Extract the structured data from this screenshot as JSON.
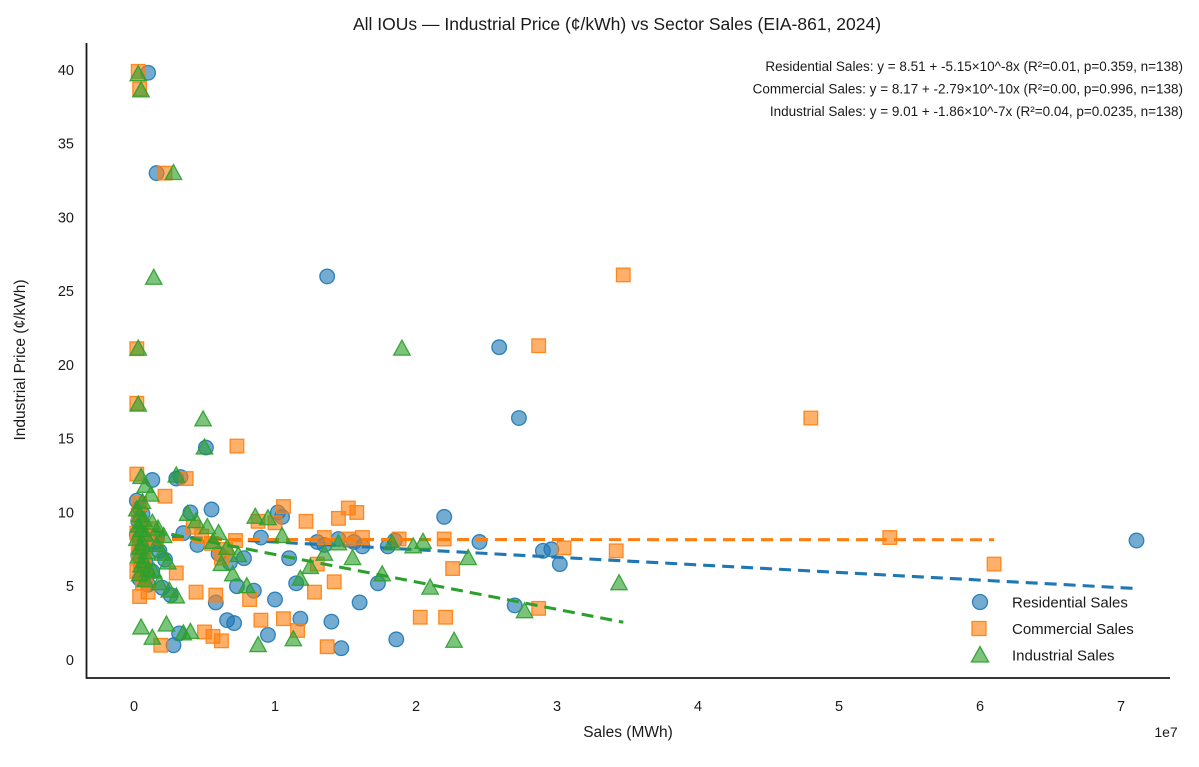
{
  "chart_data": {
    "type": "scatter",
    "title": "All IOUs — Industrial Price (¢/kWh) vs Sector Sales (EIA-861, 2024)",
    "xlabel": "Sales (MWh)",
    "ylabel": "Industrial Price (¢/kWh)",
    "x_offset_label": "1e7",
    "xlim": [
      -0.34,
      7.35
    ],
    "ylim": [
      -1.2,
      41.8
    ],
    "x_ticks": [
      0,
      1,
      2,
      3,
      4,
      5,
      6,
      7
    ],
    "y_ticks": [
      0,
      5,
      10,
      15,
      20,
      25,
      30,
      35,
      40
    ],
    "grid": false,
    "legend_position": "lower right",
    "annotations": [
      "Residential Sales: y = 8.51 + -5.15×10^-8x  (R²=0.01, p=0.359, n=138)",
      "Commercial Sales: y = 8.17 + -2.79×10^-10x  (R²=0.00, p=0.996, n=138)",
      "Industrial Sales: y = 9.01 + -1.86×10^-7x  (R²=0.04, p=0.0235, n=138)"
    ],
    "x_unit_scale": "x values in units of 1e7 MWh",
    "series": [
      {
        "name": "Residential Sales",
        "marker": "circle",
        "color": "#1f77b4",
        "n": 138,
        "trend": {
          "x1": 0,
          "y1": 8.51,
          "x2": 7.1,
          "y2": 4.85
        },
        "points": [
          [
            0.1,
            39.8
          ],
          [
            0.16,
            33.0
          ],
          [
            1.37,
            26.0
          ],
          [
            2.59,
            21.2
          ],
          [
            2.73,
            16.4
          ],
          [
            0.51,
            14.4
          ],
          [
            0.33,
            12.4
          ],
          [
            0.13,
            12.2
          ],
          [
            0.3,
            12.3
          ],
          [
            0.02,
            10.8
          ],
          [
            0.04,
            10.3
          ],
          [
            0.06,
            9.9
          ],
          [
            0.03,
            9.4
          ],
          [
            0.05,
            8.9
          ],
          [
            0.02,
            8.5
          ],
          [
            0.07,
            8.2
          ],
          [
            0.04,
            7.9
          ],
          [
            0.06,
            7.5
          ],
          [
            0.03,
            7.1
          ],
          [
            0.08,
            6.7
          ],
          [
            0.05,
            6.3
          ],
          [
            0.09,
            5.9
          ],
          [
            0.04,
            5.5
          ],
          [
            0.1,
            5.1
          ],
          [
            0.15,
            8.0
          ],
          [
            0.18,
            7.4
          ],
          [
            0.22,
            6.8
          ],
          [
            0.13,
            6.0
          ],
          [
            0.2,
            4.9
          ],
          [
            0.26,
            4.4
          ],
          [
            0.4,
            10.0
          ],
          [
            0.55,
            10.2
          ],
          [
            0.35,
            8.6
          ],
          [
            0.45,
            7.8
          ],
          [
            0.6,
            7.2
          ],
          [
            0.68,
            6.6
          ],
          [
            0.78,
            6.9
          ],
          [
            0.73,
            5.0
          ],
          [
            0.85,
            4.7
          ],
          [
            0.58,
            3.9
          ],
          [
            0.95,
            1.7
          ],
          [
            0.71,
            2.5
          ],
          [
            0.28,
            1.0
          ],
          [
            0.32,
            1.8
          ],
          [
            1.02,
            10.0
          ],
          [
            1.05,
            9.7
          ],
          [
            1.1,
            6.9
          ],
          [
            0.9,
            8.3
          ],
          [
            1.15,
            5.2
          ],
          [
            1.0,
            4.1
          ],
          [
            1.18,
            2.8
          ],
          [
            0.66,
            2.7
          ],
          [
            1.3,
            8.0
          ],
          [
            1.35,
            7.8
          ],
          [
            1.45,
            8.2
          ],
          [
            1.56,
            8.0
          ],
          [
            1.62,
            7.7
          ],
          [
            1.4,
            2.6
          ],
          [
            1.47,
            0.8
          ],
          [
            1.86,
            1.4
          ],
          [
            1.8,
            7.7
          ],
          [
            1.85,
            8.1
          ],
          [
            1.73,
            5.2
          ],
          [
            1.6,
            3.9
          ],
          [
            2.2,
            9.7
          ],
          [
            2.45,
            8.0
          ],
          [
            2.9,
            7.4
          ],
          [
            2.96,
            7.5
          ],
          [
            3.02,
            6.5
          ],
          [
            2.7,
            3.7
          ],
          [
            7.11,
            8.1
          ]
        ]
      },
      {
        "name": "Commercial Sales",
        "marker": "square",
        "color": "#ff7f0e",
        "n": 138,
        "trend": {
          "x1": 0,
          "y1": 8.17,
          "x2": 6.1,
          "y2": 8.15
        },
        "points": [
          [
            0.03,
            39.9
          ],
          [
            0.04,
            38.7
          ],
          [
            0.22,
            33.0
          ],
          [
            3.47,
            26.1
          ],
          [
            2.87,
            21.3
          ],
          [
            0.02,
            21.1
          ],
          [
            0.02,
            17.4
          ],
          [
            4.8,
            16.4
          ],
          [
            0.73,
            14.5
          ],
          [
            0.37,
            12.3
          ],
          [
            0.22,
            11.1
          ],
          [
            5.36,
            8.3
          ],
          [
            6.1,
            6.5
          ],
          [
            0.02,
            12.6
          ],
          [
            0.04,
            10.6
          ],
          [
            0.03,
            9.8
          ],
          [
            0.05,
            9.2
          ],
          [
            0.02,
            8.6
          ],
          [
            0.06,
            8.1
          ],
          [
            0.04,
            7.7
          ],
          [
            0.03,
            7.2
          ],
          [
            0.07,
            6.8
          ],
          [
            0.05,
            6.4
          ],
          [
            0.02,
            6.0
          ],
          [
            0.08,
            5.6
          ],
          [
            0.06,
            5.2
          ],
          [
            0.1,
            4.6
          ],
          [
            0.04,
            4.3
          ],
          [
            0.12,
            8.9
          ],
          [
            0.16,
            8.3
          ],
          [
            0.19,
            1.0
          ],
          [
            0.42,
            9.0
          ],
          [
            0.48,
            8.4
          ],
          [
            0.55,
            7.9
          ],
          [
            0.65,
            7.5
          ],
          [
            0.62,
            6.9
          ],
          [
            0.72,
            8.1
          ],
          [
            0.3,
            5.9
          ],
          [
            0.44,
            4.6
          ],
          [
            0.58,
            4.4
          ],
          [
            0.82,
            4.1
          ],
          [
            0.9,
            2.7
          ],
          [
            1.06,
            2.8
          ],
          [
            0.88,
            9.4
          ],
          [
            1.0,
            9.3
          ],
          [
            1.22,
            9.4
          ],
          [
            1.06,
            10.4
          ],
          [
            1.52,
            10.3
          ],
          [
            1.58,
            10.0
          ],
          [
            1.45,
            9.6
          ],
          [
            1.35,
            8.3
          ],
          [
            1.52,
            8.2
          ],
          [
            1.62,
            8.3
          ],
          [
            1.3,
            6.5
          ],
          [
            1.28,
            4.6
          ],
          [
            1.42,
            5.3
          ],
          [
            0.5,
            1.9
          ],
          [
            0.56,
            1.6
          ],
          [
            0.62,
            1.3
          ],
          [
            1.37,
            0.9
          ],
          [
            1.16,
            2.0
          ],
          [
            1.88,
            8.2
          ],
          [
            2.2,
            8.2
          ],
          [
            2.03,
            2.9
          ],
          [
            2.26,
            6.2
          ],
          [
            2.87,
            3.5
          ],
          [
            3.05,
            7.6
          ],
          [
            3.42,
            7.4
          ],
          [
            2.21,
            2.9
          ]
        ]
      },
      {
        "name": "Industrial Sales",
        "marker": "triangle",
        "color": "#2ca02c",
        "n": 138,
        "trend": {
          "x1": 0,
          "y1": 9.01,
          "x2": 3.47,
          "y2": 2.56
        },
        "points": [
          [
            0.03,
            39.7
          ],
          [
            0.05,
            38.6
          ],
          [
            0.28,
            33.0
          ],
          [
            0.14,
            25.9
          ],
          [
            0.03,
            21.1
          ],
          [
            0.03,
            17.3
          ],
          [
            1.9,
            21.1
          ],
          [
            0.49,
            16.3
          ],
          [
            0.5,
            14.4
          ],
          [
            0.3,
            12.5
          ],
          [
            0.05,
            12.4
          ],
          [
            0.08,
            11.8
          ],
          [
            0.12,
            11.2
          ],
          [
            0.06,
            10.7
          ],
          [
            0.02,
            10.2
          ],
          [
            0.04,
            9.8
          ],
          [
            0.07,
            9.5
          ],
          [
            0.03,
            9.1
          ],
          [
            0.05,
            8.8
          ],
          [
            0.08,
            8.5
          ],
          [
            0.02,
            8.2
          ],
          [
            0.06,
            7.9
          ],
          [
            0.04,
            7.6
          ],
          [
            0.09,
            7.3
          ],
          [
            0.03,
            7.0
          ],
          [
            0.07,
            6.7
          ],
          [
            0.05,
            6.4
          ],
          [
            0.1,
            6.1
          ],
          [
            0.04,
            5.8
          ],
          [
            0.08,
            5.4
          ],
          [
            0.13,
            9.3
          ],
          [
            0.17,
            8.9
          ],
          [
            0.21,
            8.4
          ],
          [
            0.16,
            7.8
          ],
          [
            0.2,
            7.2
          ],
          [
            0.24,
            6.6
          ],
          [
            0.14,
            6.0
          ],
          [
            0.18,
            5.2
          ],
          [
            0.25,
            4.7
          ],
          [
            0.3,
            4.3
          ],
          [
            0.05,
            2.2
          ],
          [
            0.13,
            1.5
          ],
          [
            0.23,
            2.4
          ],
          [
            0.35,
            1.8
          ],
          [
            0.4,
            1.9
          ],
          [
            0.38,
            9.9
          ],
          [
            0.44,
            9.4
          ],
          [
            0.52,
            9.0
          ],
          [
            0.6,
            8.6
          ],
          [
            0.56,
            8.0
          ],
          [
            0.66,
            7.6
          ],
          [
            0.74,
            7.1
          ],
          [
            0.62,
            6.5
          ],
          [
            0.7,
            5.8
          ],
          [
            0.8,
            5.0
          ],
          [
            0.86,
            9.7
          ],
          [
            0.95,
            9.6
          ],
          [
            1.05,
            8.4
          ],
          [
            0.88,
            1.0
          ],
          [
            1.13,
            1.4
          ],
          [
            1.18,
            5.5
          ],
          [
            1.25,
            6.3
          ],
          [
            1.35,
            7.2
          ],
          [
            1.45,
            7.9
          ],
          [
            1.55,
            6.9
          ],
          [
            1.76,
            5.8
          ],
          [
            1.83,
            7.9
          ],
          [
            1.98,
            7.7
          ],
          [
            2.05,
            8.0
          ],
          [
            2.37,
            6.9
          ],
          [
            2.77,
            3.3
          ],
          [
            2.27,
            1.3
          ],
          [
            3.44,
            5.2
          ],
          [
            2.1,
            4.9
          ]
        ]
      }
    ]
  }
}
